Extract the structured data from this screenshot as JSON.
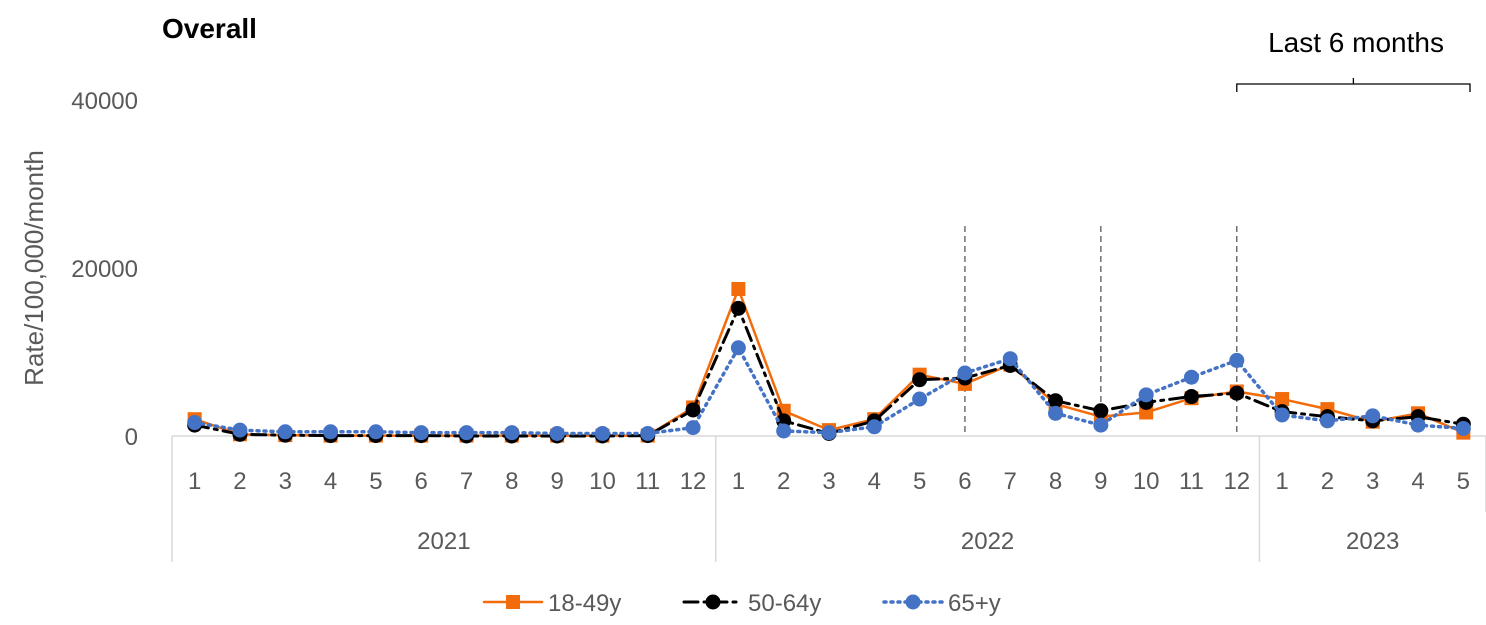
{
  "chart_data": {
    "type": "line",
    "title": "Overall",
    "ylabel": "Rate/100,000/month",
    "xlabel": "",
    "ylim": [
      0,
      40000
    ],
    "yticks": [
      0,
      20000,
      40000
    ],
    "grid": false,
    "legend_position": "bottom",
    "annotation": {
      "text": "Last 6 months",
      "span_months": [
        "2022-12",
        "2023-05"
      ]
    },
    "reference_lines": [
      "2022-06",
      "2022-09",
      "2022-12"
    ],
    "year_groups": [
      {
        "label": "2021",
        "months": [
          "1",
          "2",
          "3",
          "4",
          "5",
          "6",
          "7",
          "8",
          "9",
          "10",
          "11",
          "12"
        ]
      },
      {
        "label": "2022",
        "months": [
          "1",
          "2",
          "3",
          "4",
          "5",
          "6",
          "7",
          "8",
          "9",
          "10",
          "11",
          "12"
        ]
      },
      {
        "label": "2023",
        "months": [
          "1",
          "2",
          "3",
          "4",
          "5"
        ]
      }
    ],
    "series": [
      {
        "name": "18-49y",
        "color": "#F26C0C",
        "line_style": "solid",
        "marker": "square",
        "values": [
          2000,
          200,
          100,
          50,
          50,
          50,
          50,
          50,
          50,
          50,
          50,
          3400,
          17500,
          3000,
          700,
          2000,
          7300,
          6200,
          8500,
          3800,
          2300,
          2800,
          4500,
          5300,
          4400,
          3200,
          1700,
          2700,
          400
        ]
      },
      {
        "name": "50-64y",
        "color": "#000000",
        "line_style": "dashdot",
        "marker": "circle",
        "values": [
          1300,
          200,
          100,
          50,
          50,
          50,
          0,
          0,
          0,
          0,
          50,
          3100,
          15200,
          1800,
          300,
          1800,
          6700,
          6900,
          8400,
          4200,
          3000,
          4000,
          4700,
          5100,
          2900,
          2300,
          1800,
          2300,
          1400
        ]
      },
      {
        "name": "65+y",
        "color": "#4472C4",
        "line_style": "dotted",
        "marker": "circle",
        "values": [
          1600,
          700,
          500,
          500,
          500,
          400,
          400,
          400,
          300,
          300,
          300,
          1000,
          10500,
          600,
          400,
          1100,
          4400,
          7500,
          9200,
          2700,
          1300,
          4900,
          7000,
          9000,
          2500,
          1800,
          2400,
          1300,
          900
        ]
      }
    ]
  }
}
